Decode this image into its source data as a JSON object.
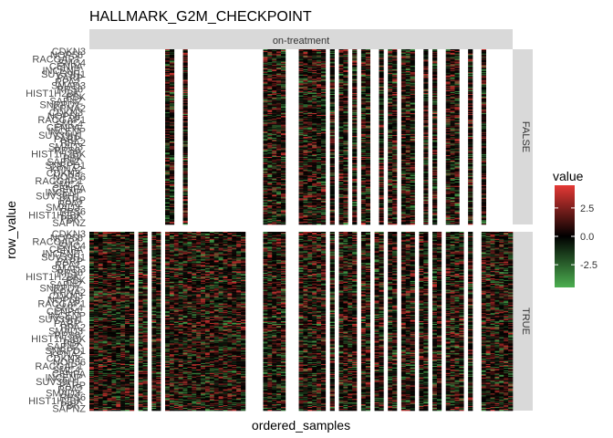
{
  "chart_data": {
    "type": "heatmap",
    "title": "HALLMARK_G2M_CHECKPOINT",
    "xlabel": "ordered_samples",
    "ylabel": "row_value",
    "column_facet": "on-treatment",
    "row_facets": [
      "FALSE",
      "TRUE"
    ],
    "legend": {
      "title": "value",
      "ticks": [
        2.5,
        0.0,
        -2.5
      ],
      "tick_labels": [
        "2.5",
        "0.0",
        "-2.5"
      ],
      "range": [
        -4.5,
        4.5
      ],
      "colors": {
        "low": "#4caf50",
        "mid": "#000000",
        "high": "#e53935"
      },
      "position": "right"
    },
    "row_labels_visible": [
      "CDKN3",
      "NOP56",
      "RACGAP1",
      "SMC4",
      "CENPA",
      "INCENP",
      "SUV39H1",
      "PARP",
      "RPA2",
      "SMAD3",
      "RPS6",
      "HIST1H2BK",
      "PBK",
      "SAPNZ",
      "SNRPD1",
      "KPNA2"
    ],
    "false_panel_columns_with_data": [
      17,
      18,
      21,
      39,
      40,
      41,
      42,
      43,
      47,
      48,
      49,
      50,
      51,
      52,
      54,
      56,
      57,
      59,
      61,
      62,
      65,
      67,
      68,
      70,
      71,
      72,
      75,
      77,
      80,
      81,
      82,
      85,
      88
    ],
    "true_panel_column_gaps": [
      10,
      13,
      16,
      35,
      36,
      37,
      38,
      44,
      45,
      46,
      53,
      55,
      60,
      63,
      66,
      69,
      73,
      76,
      79,
      84,
      86,
      87
    ]
  }
}
